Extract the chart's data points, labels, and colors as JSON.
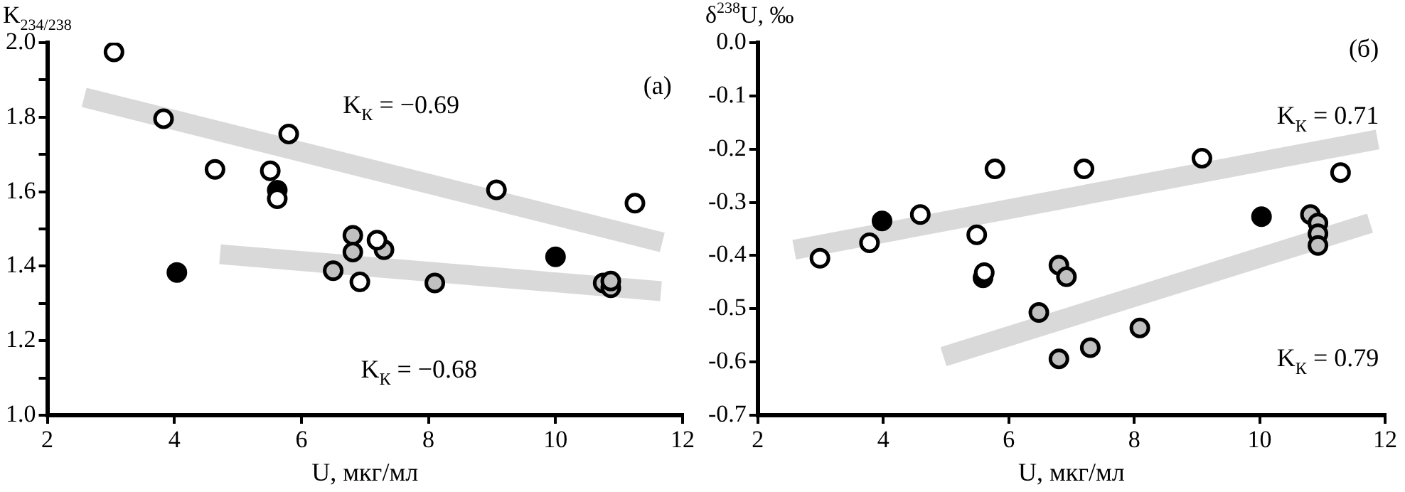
{
  "chart_data": [
    {
      "type": "scatter",
      "xlabel": "U, мкг/мл",
      "ylabel": "K$_{234/238}$",
      "annotations": [
        "(а)",
        "K$_{К}$ = −0.69",
        "K$_{К}$ = −0.68"
      ],
      "xlim": [
        2,
        12
      ],
      "xticks": [
        2,
        4,
        6,
        8,
        10,
        12
      ],
      "ylim": [
        1,
        2
      ],
      "yticks": [
        {
          "value": 1,
          "label": "1.0"
        },
        {
          "value": 1.1,
          "label": null
        },
        {
          "value": 1.2,
          "label": "1.2"
        },
        {
          "value": 1.3,
          "label": null
        },
        {
          "value": 1.4,
          "label": "1.4"
        },
        {
          "value": 1.5,
          "label": null
        },
        {
          "value": 1.6,
          "label": "1.6"
        },
        {
          "value": 1.7,
          "label": null
        },
        {
          "value": 1.8,
          "label": "1.8"
        },
        {
          "value": 1.9,
          "label": null
        },
        {
          "value": 2,
          "label": "2.0"
        }
      ],
      "grid": false,
      "legend": false,
      "marker": "circle",
      "series": [
        {
          "type": "line",
          "marker": "none",
          "color": "#d9d9d9",
          "x": [
            2.58,
            11.68
          ],
          "values": [
            1.853,
            1.464
          ]
        },
        {
          "type": "line",
          "marker": "none",
          "color": "#d9d9d9",
          "x": [
            4.72,
            11.66
          ],
          "values": [
            1.432,
            1.333
          ]
        },
        {
          "color": "#ffffff",
          "x": [
            3.05,
            3.83,
            4.64,
            5.51,
            5.62,
            5.8,
            6.92,
            7.19,
            9.07,
            11.25
          ],
          "values": [
            1.975,
            1.796,
            1.66,
            1.656,
            1.581,
            1.755,
            1.358,
            1.47,
            1.605,
            1.569
          ]
        },
        {
          "color": "#c0c0c0",
          "x": [
            6.5,
            6.81,
            6.81,
            7.3,
            8.1,
            10.75,
            10.87,
            10.87
          ],
          "values": [
            1.388,
            1.483,
            1.438,
            1.444,
            1.355,
            1.355,
            1.342,
            1.36
          ]
        },
        {
          "color": "#000000",
          "x": [
            4.04,
            5.62,
            10.0
          ],
          "values": [
            1.383,
            1.604,
            1.425
          ]
        }
      ]
    },
    {
      "type": "scatter",
      "xlabel": "U, мкг/мл",
      "ylabel": "δ$^{238}$U, ‰",
      "annotations": [
        "(б)",
        "K$_{К}$ = 0.71",
        "K$_{К}$ = 0.79"
      ],
      "xlim": [
        2,
        12
      ],
      "xticks": [
        2,
        4,
        6,
        8,
        10,
        12
      ],
      "ylim": [
        -0.7,
        0
      ],
      "yticks": [
        {
          "value": -0.7,
          "label": "-0.7"
        },
        {
          "value": -0.6,
          "label": "-0.6"
        },
        {
          "value": -0.5,
          "label": "-0.5"
        },
        {
          "value": -0.4,
          "label": "-0.4"
        },
        {
          "value": -0.3,
          "label": "-0.3"
        },
        {
          "value": -0.2,
          "label": "-0.2"
        },
        {
          "value": -0.1,
          "label": "-0.1"
        },
        {
          "value": 0,
          "label": "0.0"
        }
      ],
      "grid": false,
      "legend": false,
      "marker": "circle",
      "series": [
        {
          "type": "line",
          "marker": "none",
          "color": "#d9d9d9",
          "x": [
            2.58,
            11.88
          ],
          "values": [
            -0.389,
            -0.182
          ]
        },
        {
          "type": "line",
          "marker": "none",
          "color": "#d9d9d9",
          "x": [
            4.96,
            11.76
          ],
          "values": [
            -0.59,
            -0.339
          ]
        },
        {
          "color": "#ffffff",
          "x": [
            2.99,
            3.78,
            4.59,
            5.49,
            5.61,
            5.78,
            7.2,
            9.08,
            11.29
          ],
          "values": [
            -0.405,
            -0.376,
            -0.323,
            -0.361,
            -0.432,
            -0.237,
            -0.237,
            -0.217,
            -0.244
          ]
        },
        {
          "color": "#c0c0c0",
          "x": [
            6.48,
            6.8,
            6.92,
            6.8,
            7.3,
            8.09,
            10.81,
            10.93,
            10.93,
            10.93
          ],
          "values": [
            -0.507,
            -0.418,
            -0.44,
            -0.594,
            -0.573,
            -0.536,
            -0.323,
            -0.339,
            -0.359,
            -0.381
          ]
        },
        {
          "color": "#000000",
          "x": [
            3.98,
            5.59,
            10.03
          ],
          "values": [
            -0.335,
            -0.442,
            -0.327
          ]
        }
      ]
    }
  ]
}
